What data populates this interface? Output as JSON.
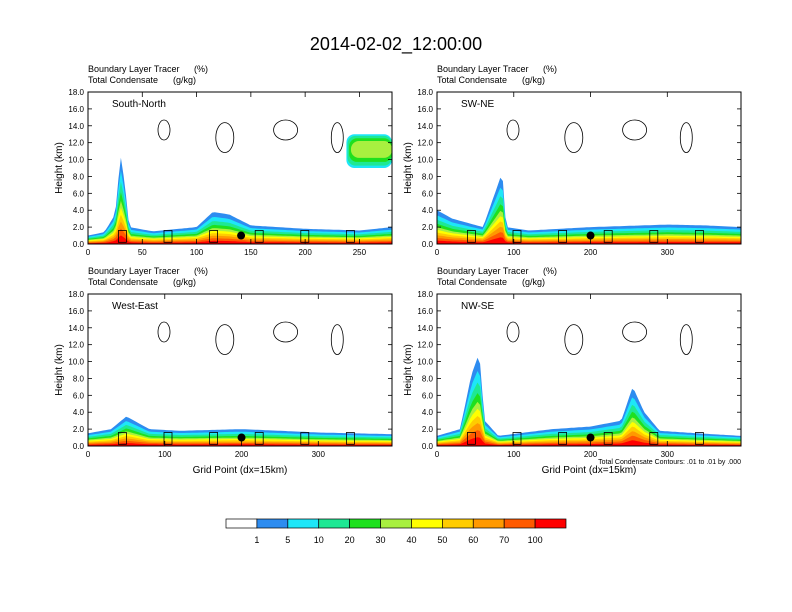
{
  "title": "2014-02-02_12:00:00",
  "colors": {
    "levels": [
      "#ffffff",
      "#2d8cf0",
      "#1ee6f8",
      "#1ee894",
      "#1ee01e",
      "#a8f040",
      "#ffff00",
      "#ffcc00",
      "#ff9900",
      "#ff5a00",
      "#ff0000"
    ],
    "contour": "#000000",
    "axis": "#000000"
  },
  "chart_data": [
    {
      "type": "heatmap",
      "panel": "south-north",
      "label": "South-North",
      "subtitle_left": [
        "Boundary Layer Tracer",
        "Total Condensate"
      ],
      "subtitle_units": [
        "(%)",
        "(g/kg)"
      ],
      "ylabel": "Height (km)",
      "xlabel": "",
      "xlim": [
        0,
        280
      ],
      "xticks": [
        0,
        50,
        100,
        150,
        200,
        250
      ],
      "ylim": [
        0,
        18
      ],
      "yticks": [
        "0.0",
        "2.0",
        "4.0",
        "6.0",
        "8.0",
        "10.0",
        "12.0",
        "14.0",
        "16.0",
        "18.0"
      ],
      "marker": {
        "x": 141,
        "y": 1.0
      },
      "bl_top_km": [
        [
          0,
          1.0
        ],
        [
          15,
          1.4
        ],
        [
          25,
          3.5
        ],
        [
          30,
          10.5
        ],
        [
          34,
          7
        ],
        [
          38,
          2.0
        ],
        [
          60,
          1.5
        ],
        [
          100,
          2.0
        ],
        [
          115,
          3.8
        ],
        [
          130,
          3.5
        ],
        [
          150,
          2.2
        ],
        [
          200,
          1.8
        ],
        [
          250,
          1.6
        ],
        [
          280,
          2.0
        ]
      ],
      "upper_patch": {
        "x0": 238,
        "x1": 280,
        "y0": 9.0,
        "y1": 13.0
      }
    },
    {
      "type": "heatmap",
      "panel": "sw-ne",
      "label": "SW-NE",
      "subtitle_left": [
        "Boundary Layer Tracer",
        "Total Condensate"
      ],
      "subtitle_units": [
        "(%)",
        "(g/kg)"
      ],
      "ylabel": "Height (km)",
      "xlabel": "",
      "xlim": [
        0,
        396
      ],
      "xticks": [
        0,
        100,
        200,
        300
      ],
      "ylim": [
        0,
        18
      ],
      "yticks": [
        "0.0",
        "2.0",
        "4.0",
        "6.0",
        "8.0",
        "10.0",
        "12.0",
        "14.0",
        "16.0",
        "18.0"
      ],
      "marker": {
        "x": 200,
        "y": 1.0
      },
      "bl_top_km": [
        [
          0,
          4.0
        ],
        [
          20,
          3.0
        ],
        [
          40,
          2.5
        ],
        [
          60,
          2.0
        ],
        [
          85,
          8.5
        ],
        [
          90,
          2.0
        ],
        [
          120,
          1.6
        ],
        [
          200,
          2.0
        ],
        [
          300,
          2.3
        ],
        [
          350,
          2.2
        ],
        [
          396,
          2.0
        ]
      ]
    },
    {
      "type": "heatmap",
      "panel": "west-east",
      "label": "West-East",
      "subtitle_left": [
        "Boundary Layer Tracer",
        "Total Condensate"
      ],
      "subtitle_units": [
        "(%)",
        "(g/kg)"
      ],
      "ylabel": "Height (km)",
      "xlabel": "Grid Point (dx=15km)",
      "xlim": [
        0,
        396
      ],
      "xticks": [
        0,
        100,
        200,
        300
      ],
      "ylim": [
        0,
        18
      ],
      "yticks": [
        "0.0",
        "2.0",
        "4.0",
        "6.0",
        "8.0",
        "10.0",
        "12.0",
        "14.0",
        "16.0",
        "18.0"
      ],
      "marker": {
        "x": 200,
        "y": 1.0
      },
      "bl_top_km": [
        [
          0,
          1.5
        ],
        [
          30,
          2.0
        ],
        [
          50,
          3.5
        ],
        [
          80,
          2.0
        ],
        [
          120,
          1.8
        ],
        [
          200,
          2.0
        ],
        [
          300,
          1.6
        ],
        [
          396,
          1.4
        ]
      ]
    },
    {
      "type": "heatmap",
      "panel": "nw-se",
      "label": "NW-SE",
      "subtitle_left": [
        "Boundary Layer Tracer",
        "Total Condensate"
      ],
      "subtitle_units": [
        "(%)",
        "(g/kg)"
      ],
      "ylabel": "Height (km)",
      "xlabel": "Grid Point (dx=15km)",
      "note": "Total Condensate Contours: .01 to .01 by .000",
      "xlim": [
        0,
        396
      ],
      "xticks": [
        0,
        100,
        200,
        300
      ],
      "ylim": [
        0,
        18
      ],
      "yticks": [
        "0.0",
        "2.0",
        "4.0",
        "6.0",
        "8.0",
        "10.0",
        "12.0",
        "14.0",
        "16.0",
        "18.0"
      ],
      "marker": {
        "x": 200,
        "y": 1.0
      },
      "bl_top_km": [
        [
          0,
          1.2
        ],
        [
          30,
          2.0
        ],
        [
          45,
          8.5
        ],
        [
          55,
          11.0
        ],
        [
          62,
          3.0
        ],
        [
          80,
          1.2
        ],
        [
          150,
          2.0
        ],
        [
          200,
          2.3
        ],
        [
          240,
          3.0
        ],
        [
          255,
          7.0
        ],
        [
          270,
          4.0
        ],
        [
          290,
          1.8
        ],
        [
          340,
          1.5
        ],
        [
          396,
          1.2
        ]
      ]
    }
  ],
  "colorbar": {
    "labels": [
      "1",
      "5",
      "10",
      "20",
      "30",
      "40",
      "50",
      "60",
      "70",
      "100"
    ]
  }
}
